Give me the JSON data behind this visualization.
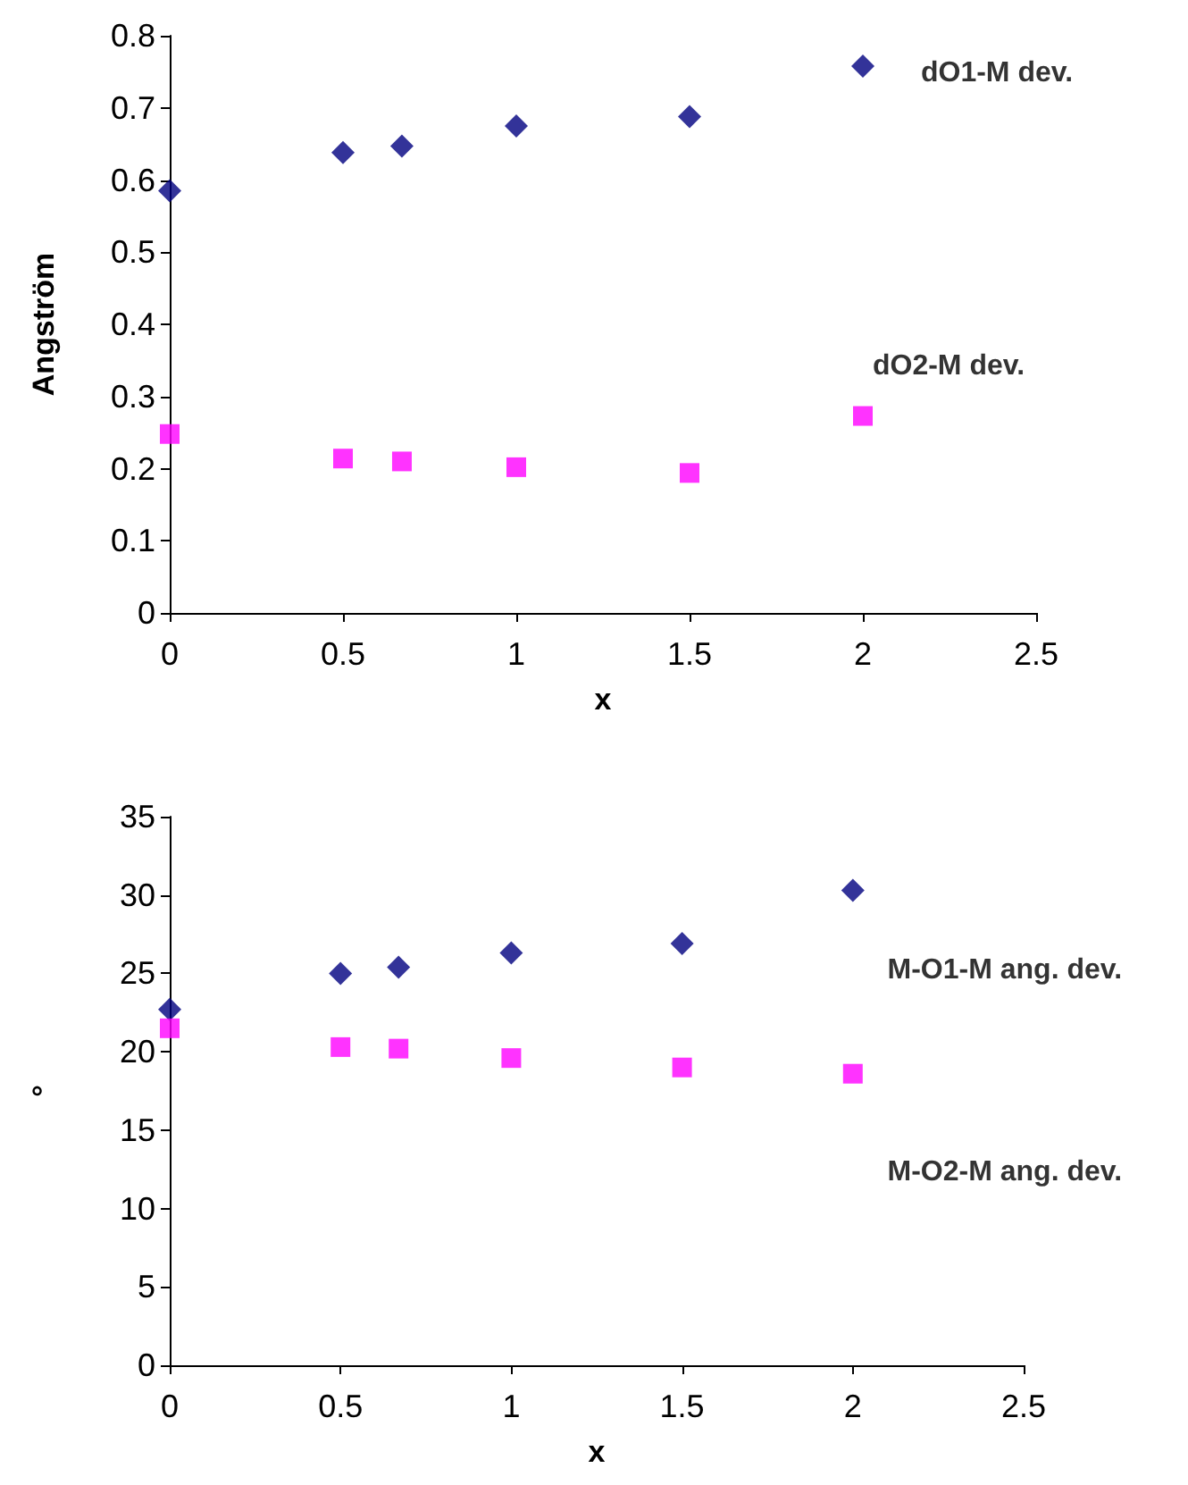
{
  "chart_data": [
    {
      "type": "scatter",
      "xlabel": "x",
      "ylabel": "Angström",
      "xlim": [
        0,
        2.5
      ],
      "xticks": [
        0,
        0.5,
        1,
        1.5,
        2,
        2.5
      ],
      "ylim": [
        0,
        0.8
      ],
      "yticks": [
        0,
        0.1,
        0.2,
        0.3,
        0.4,
        0.5,
        0.6,
        0.7,
        0.8
      ],
      "grid": false,
      "legend": false,
      "x": [
        0,
        0.5,
        0.67,
        1,
        1.5,
        2
      ],
      "series": [
        {
          "name": "dO1-M dev.",
          "color": "#000080",
          "marker": "diamond",
          "values": [
            0.585,
            0.638,
            0.647,
            0.675,
            0.688,
            0.758
          ]
        },
        {
          "name": "dO2-M dev.",
          "color": "#ff00ff",
          "marker": "square",
          "values": [
            0.248,
            0.214,
            0.21,
            0.202,
            0.194,
            0.273
          ]
        }
      ]
    },
    {
      "type": "scatter",
      "xlabel": "x",
      "ylabel": "°",
      "xlim": [
        0,
        2.5
      ],
      "xticks": [
        0,
        0.5,
        1,
        1.5,
        2,
        2.5
      ],
      "ylim": [
        0,
        35
      ],
      "yticks": [
        0,
        5,
        10,
        15,
        20,
        25,
        30,
        35
      ],
      "grid": false,
      "legend": false,
      "x": [
        0,
        0.5,
        0.67,
        1,
        1.5,
        2
      ],
      "series": [
        {
          "name": "M-O1-M ang. dev.",
          "color": "#000080",
          "marker": "diamond",
          "values": [
            22.7,
            25.0,
            25.4,
            26.3,
            26.9,
            30.3
          ]
        },
        {
          "name": "M-O2-M ang. dev.",
          "color": "#ff00ff",
          "marker": "square",
          "values": [
            21.5,
            20.3,
            20.2,
            19.6,
            19.0,
            18.6
          ]
        }
      ]
    }
  ]
}
